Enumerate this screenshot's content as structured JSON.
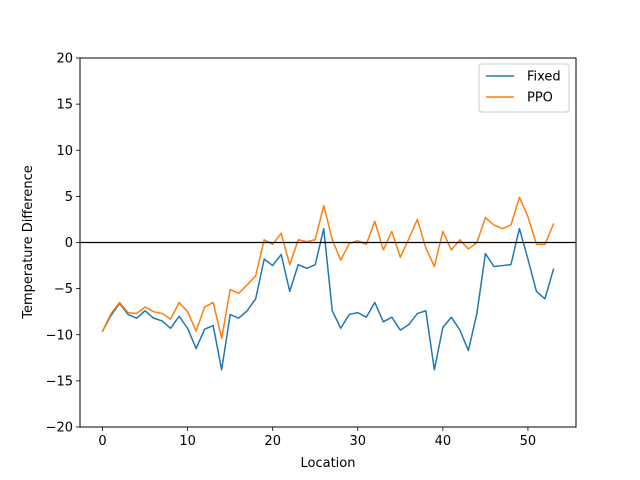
{
  "chart_data": {
    "type": "line",
    "title": "",
    "xlabel": "Location",
    "ylabel": "Temperature Difference",
    "xlim": [
      -2.65,
      55.65
    ],
    "ylim": [
      -20,
      20
    ],
    "xticks": [
      0,
      10,
      20,
      30,
      40,
      50
    ],
    "yticks": [
      -20,
      -15,
      -10,
      -5,
      0,
      5,
      10,
      15,
      20
    ],
    "grid": false,
    "legend_position": "upper right",
    "reference_line": {
      "y": 0,
      "color": "#000000"
    },
    "x": [
      0,
      1,
      2,
      3,
      4,
      5,
      6,
      7,
      8,
      9,
      10,
      11,
      12,
      13,
      14,
      15,
      16,
      17,
      18,
      19,
      20,
      21,
      22,
      23,
      24,
      25,
      26,
      27,
      28,
      29,
      30,
      31,
      32,
      33,
      34,
      35,
      36,
      37,
      38,
      39,
      40,
      41,
      42,
      43,
      44,
      45,
      46,
      47,
      48,
      49,
      50,
      51,
      52,
      53
    ],
    "series": [
      {
        "name": "Fixed",
        "color": "#1f77b4",
        "values": [
          -9.6,
          -7.9,
          -6.6,
          -7.8,
          -8.2,
          -7.4,
          -8.2,
          -8.5,
          -9.3,
          -8.0,
          -9.3,
          -11.5,
          -9.4,
          -9.0,
          -13.8,
          -7.8,
          -8.2,
          -7.4,
          -6.1,
          -1.8,
          -2.5,
          -1.3,
          -5.3,
          -2.4,
          -2.8,
          -2.4,
          1.5,
          -7.4,
          -9.3,
          -7.8,
          -7.6,
          -8.1,
          -6.5,
          -8.6,
          -8.1,
          -9.5,
          -8.9,
          -7.7,
          -7.4,
          -13.8,
          -9.2,
          -8.1,
          -9.5,
          -11.7,
          -7.7,
          -1.2,
          -2.6,
          -2.5,
          -2.4,
          1.5,
          -1.8,
          -5.3,
          -6.1,
          -2.9
        ]
      },
      {
        "name": "PPO",
        "color": "#ff7f0e",
        "values": [
          -9.6,
          -7.7,
          -6.5,
          -7.6,
          -7.7,
          -7.0,
          -7.5,
          -7.7,
          -8.3,
          -6.5,
          -7.5,
          -9.6,
          -7.0,
          -6.5,
          -10.4,
          -5.1,
          -5.5,
          -4.6,
          -3.6,
          0.3,
          -0.2,
          1.0,
          -2.4,
          0.3,
          0.1,
          0.3,
          4.0,
          0.3,
          -1.9,
          -0.1,
          0.2,
          -0.2,
          2.3,
          -0.8,
          1.2,
          -1.6,
          0.4,
          2.5,
          -0.6,
          -2.6,
          1.2,
          -0.8,
          0.3,
          -0.7,
          0.0,
          2.7,
          1.9,
          1.5,
          1.9,
          4.9,
          2.8,
          -0.2,
          -0.2,
          2.0
        ]
      }
    ]
  }
}
